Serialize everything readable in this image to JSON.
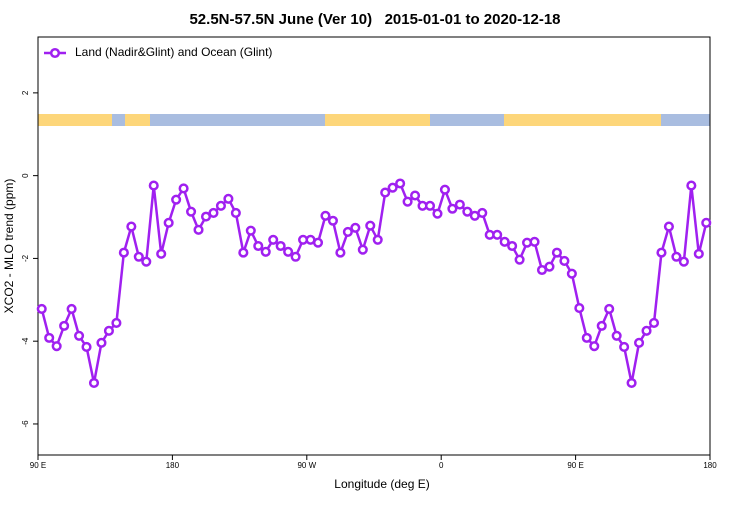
{
  "chart_data": {
    "type": "line",
    "title": "52.5N-57.5N June (Ver 10)   2015-01-01 to 2020-12-18",
    "x_label": "Longitude (deg E)",
    "y_label": "XCO2 - MLO trend (ppm)",
    "x": [
      92.5,
      97.5,
      102.5,
      107.5,
      112.5,
      117.5,
      122.5,
      127.5,
      132.5,
      137.5,
      142.5,
      147.5,
      152.5,
      157.5,
      162.5,
      167.5,
      172.5,
      177.5,
      182.5,
      187.5,
      192.5,
      197.5,
      202.5,
      207.5,
      212.5,
      217.5,
      222.5,
      227.5,
      232.5,
      237.5,
      242.5,
      247.5,
      252.5,
      257.5,
      262.5,
      267.5,
      272.5,
      277.5,
      282.5,
      287.5,
      292.5,
      297.5,
      302.5,
      307.5,
      312.5,
      317.5,
      322.5,
      327.5,
      332.5,
      337.5,
      342.5,
      347.5,
      352.5,
      357.5,
      362.5,
      367.5,
      372.5,
      377.5,
      382.5,
      387.5,
      392.5,
      397.5,
      402.5,
      407.5,
      412.5,
      417.5,
      422.5,
      427.5,
      432.5,
      437.5,
      442.5,
      447.5,
      452.5,
      457.5,
      462.5,
      467.5,
      472.5,
      477.5,
      482.5,
      487.5,
      492.5,
      497.5,
      502.5,
      507.5,
      512.5,
      517.5,
      522.5,
      527.5,
      532.5,
      537.5
    ],
    "series": [
      {
        "name": "Land (Nadir&Glint) and Ocean (Glint)",
        "color": "#a020f0",
        "values": [
          -3.22,
          -3.92,
          -4.12,
          -3.63,
          -3.22,
          -3.87,
          -4.14,
          -5.01,
          -4.04,
          -3.75,
          -3.56,
          -1.86,
          -1.23,
          -1.96,
          -2.08,
          -0.24,
          -1.89,
          -1.14,
          -0.58,
          -0.31,
          -0.87,
          -1.31,
          -0.99,
          -0.9,
          -0.73,
          -0.56,
          -0.9,
          -1.86,
          -1.33,
          -1.7,
          -1.84,
          -1.55,
          -1.7,
          -1.84,
          -1.96,
          -1.55,
          -1.55,
          -1.62,
          -0.97,
          -1.09,
          -1.86,
          -1.36,
          -1.26,
          -1.79,
          -1.21,
          -1.55,
          -0.41,
          -0.29,
          -0.19,
          -0.63,
          -0.48,
          -0.73,
          -0.73,
          -0.92,
          -0.34,
          -0.8,
          -0.7,
          -0.87,
          -0.97,
          -0.9,
          -1.43,
          -1.43,
          -1.6,
          -1.7,
          -2.03,
          -1.62,
          -1.6,
          -2.28,
          -2.2,
          -1.86,
          -2.06,
          -2.37,
          -3.2,
          -3.92,
          -4.12,
          -3.63,
          -3.22,
          -3.87,
          -4.14,
          -5.01,
          -4.04,
          -3.75,
          -3.56,
          -1.86,
          -1.23,
          -1.96,
          -2.08,
          -0.24,
          -1.89,
          -1.14
        ]
      }
    ],
    "xlim": [
      90,
      540
    ],
    "xticks": [
      {
        "value": 90,
        "label": "90 E"
      },
      180,
      {
        "value": 270,
        "label": "90 W"
      },
      {
        "value": 360,
        "label": "0"
      },
      {
        "value": 450,
        "label": "90 E"
      },
      {
        "value": 540,
        "label": "180"
      }
    ],
    "ylim": [
      -6.75,
      3.35
    ],
    "yticks": [
      -6,
      -4,
      -2,
      0,
      2
    ],
    "legend": "top-left"
  }
}
